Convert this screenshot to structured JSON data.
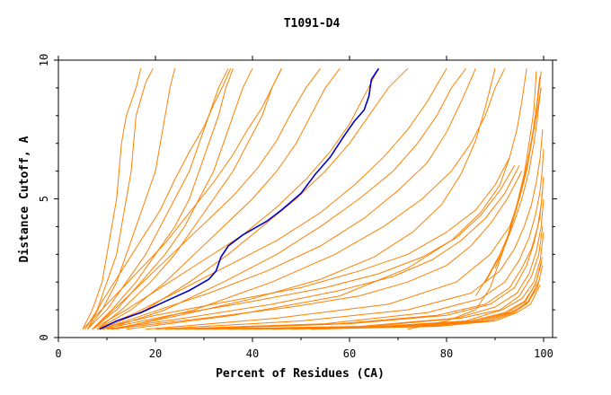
{
  "chart_data": {
    "type": "line",
    "title": "T1091-D4",
    "xlabel": "Percent of Residues (CA)",
    "ylabel": "Distance Cutoff, A",
    "xlim": [
      0,
      100
    ],
    "ylim": [
      0,
      10
    ],
    "xticks": [
      0,
      20,
      40,
      60,
      80,
      100
    ],
    "yticks": [
      0,
      5,
      10
    ],
    "grid": false,
    "legend": "none",
    "colors": {
      "highlight": "#0000cc",
      "background_models": "#ff8000",
      "axes": "#000000"
    },
    "highlight_series": {
      "x": [
        8.5,
        12,
        17,
        22,
        27,
        31,
        32.5,
        33.5,
        35,
        38,
        41,
        43,
        46,
        50,
        53,
        56,
        59,
        61,
        63,
        64,
        64.5,
        66
      ],
      "y": [
        0.3,
        0.6,
        0.9,
        1.3,
        1.7,
        2.1,
        2.4,
        2.9,
        3.3,
        3.7,
        4.0,
        4.2,
        4.6,
        5.2,
        5.9,
        6.5,
        7.3,
        7.8,
        8.2,
        8.7,
        9.3,
        9.7
      ]
    },
    "background_series": [
      {
        "x": [
          5,
          7,
          9,
          10,
          11,
          12,
          12.5,
          13,
          14,
          15,
          16,
          17
        ],
        "y": [
          0.3,
          1.0,
          2.0,
          3.0,
          4.0,
          5.0,
          6.0,
          7.0,
          8.0,
          8.5,
          9.0,
          9.7
        ]
      },
      {
        "x": [
          5.5,
          8,
          10,
          12,
          13,
          14,
          15,
          15.5,
          16,
          17,
          18,
          19.5
        ],
        "y": [
          0.3,
          1.0,
          2.0,
          3.0,
          4.0,
          5.0,
          6.0,
          7.0,
          8.0,
          8.6,
          9.2,
          9.7
        ]
      },
      {
        "x": [
          6,
          9,
          12,
          14,
          16,
          18,
          20,
          21,
          22,
          23,
          24
        ],
        "y": [
          0.3,
          1.0,
          2.0,
          3.0,
          4.0,
          5.0,
          6.0,
          7.0,
          8.0,
          9.0,
          9.7
        ]
      },
      {
        "x": [
          6,
          10,
          14,
          18,
          21,
          24,
          27,
          29,
          31,
          33,
          35
        ],
        "y": [
          0.3,
          1.0,
          2.0,
          3.0,
          4.0,
          5.0,
          6.0,
          7.0,
          8.0,
          9.0,
          9.7
        ]
      },
      {
        "x": [
          7,
          11,
          16,
          20,
          24,
          27,
          29,
          31,
          33,
          34.5,
          36
        ],
        "y": [
          0.3,
          1.0,
          2.0,
          3.0,
          4.0,
          5.0,
          6.0,
          7.0,
          8.0,
          9.0,
          9.7
        ]
      },
      {
        "x": [
          7,
          12,
          17,
          22,
          26,
          29,
          32,
          34,
          36,
          38,
          40
        ],
        "y": [
          0.3,
          1.0,
          2.0,
          3.0,
          4.0,
          5.0,
          6.0,
          7.0,
          8.0,
          9.0,
          9.7
        ]
      },
      {
        "x": [
          8,
          13,
          19,
          24,
          28,
          32,
          36,
          39,
          42,
          44,
          46
        ],
        "y": [
          0.3,
          1.0,
          2.0,
          3.0,
          4.0,
          5.0,
          6.0,
          7.0,
          8.0,
          9.0,
          9.7
        ]
      },
      {
        "x": [
          8,
          15,
          22,
          28,
          34,
          40,
          45,
          49,
          52,
          55,
          58
        ],
        "y": [
          0.3,
          1.0,
          2.0,
          3.0,
          4.0,
          5.0,
          6.0,
          7.0,
          8.0,
          9.0,
          9.7
        ]
      },
      {
        "x": [
          9,
          18,
          27,
          35,
          42,
          49,
          55,
          60,
          64,
          68,
          72
        ],
        "y": [
          0.3,
          1.0,
          2.0,
          3.0,
          4.0,
          5.0,
          6.0,
          7.0,
          8.0,
          9.0,
          9.7
        ]
      },
      {
        "x": [
          10,
          22,
          34,
          45,
          54,
          62,
          69,
          74,
          78,
          81,
          84
        ],
        "y": [
          0.3,
          1.0,
          2.0,
          3.0,
          4.0,
          5.0,
          6.0,
          7.0,
          8.0,
          9.0,
          9.7
        ]
      },
      {
        "x": [
          12,
          28,
          44,
          57,
          67,
          75,
          81,
          85,
          88,
          90,
          92
        ],
        "y": [
          0.3,
          1.0,
          2.0,
          3.0,
          4.0,
          5.0,
          6.0,
          7.0,
          8.0,
          9.0,
          9.7
        ]
      },
      {
        "x": [
          14,
          36,
          58,
          72,
          81,
          87,
          91,
          93,
          94.5,
          95.5,
          96.5
        ],
        "y": [
          0.3,
          0.8,
          1.5,
          2.5,
          3.5,
          4.5,
          5.5,
          6.5,
          7.5,
          8.5,
          9.7
        ]
      },
      {
        "x": [
          18,
          45,
          68,
          82,
          89,
          93,
          95,
          96.5,
          97.5,
          98.5,
          99.5
        ],
        "y": [
          0.3,
          0.7,
          1.2,
          2.0,
          3.0,
          4.0,
          5.0,
          6.0,
          7.0,
          8.0,
          9.0
        ]
      },
      {
        "x": [
          20,
          50,
          72,
          85,
          91,
          94,
          96,
          97.5,
          98.5,
          99.3,
          99.8
        ],
        "y": [
          0.3,
          0.6,
          1.0,
          1.6,
          2.4,
          3.2,
          4.0,
          4.8,
          5.6,
          6.5,
          7.5
        ]
      },
      {
        "x": [
          22,
          55,
          76,
          87,
          92,
          95,
          97,
          98.3,
          99.2,
          99.7,
          100
        ],
        "y": [
          0.3,
          0.5,
          0.9,
          1.4,
          2.0,
          2.8,
          3.6,
          4.4,
          5.2,
          6.0,
          6.8
        ]
      },
      {
        "x": [
          24,
          58,
          78,
          88,
          93,
          95.5,
          97.5,
          98.8,
          99.5,
          100
        ],
        "y": [
          0.3,
          0.5,
          0.8,
          1.2,
          1.8,
          2.5,
          3.2,
          4.0,
          4.8,
          5.8
        ]
      },
      {
        "x": [
          26,
          60,
          80,
          89,
          94,
          96.5,
          98,
          99.2,
          99.8
        ],
        "y": [
          0.3,
          0.5,
          0.8,
          1.2,
          1.8,
          2.6,
          3.4,
          4.3,
          5.3
        ]
      },
      {
        "x": [
          28,
          62,
          82,
          90,
          94.5,
          97,
          98.5,
          99.5,
          100
        ],
        "y": [
          0.3,
          0.4,
          0.7,
          1.1,
          1.6,
          2.3,
          3.1,
          4.0,
          5.0
        ]
      },
      {
        "x": [
          30,
          64,
          83,
          91,
          95,
          97.5,
          99,
          99.8
        ],
        "y": [
          0.3,
          0.4,
          0.7,
          1.0,
          1.5,
          2.2,
          3.0,
          4.0
        ]
      },
      {
        "x": [
          32,
          66,
          84,
          91.5,
          95.5,
          98,
          99.3,
          100
        ],
        "y": [
          0.3,
          0.4,
          0.6,
          1.0,
          1.4,
          2.0,
          2.8,
          3.8
        ]
      },
      {
        "x": [
          35,
          68,
          85,
          92,
          96,
          98.3,
          99.6
        ],
        "y": [
          0.3,
          0.4,
          0.6,
          0.9,
          1.3,
          1.9,
          2.7
        ]
      },
      {
        "x": [
          38,
          70,
          86,
          92.5,
          96.3,
          98.5,
          99.7
        ],
        "y": [
          0.3,
          0.4,
          0.6,
          0.9,
          1.3,
          2.0,
          2.9
        ]
      },
      {
        "x": [
          40,
          72,
          87,
          93,
          96.5,
          98.7,
          99.8
        ],
        "y": [
          0.3,
          0.4,
          0.6,
          0.9,
          1.2,
          1.8,
          2.6
        ]
      },
      {
        "x": [
          44,
          74,
          88,
          93.5,
          96.8,
          99
        ],
        "y": [
          0.3,
          0.4,
          0.6,
          0.9,
          1.3,
          2.0
        ]
      },
      {
        "x": [
          48,
          76,
          89,
          94,
          97,
          99.2
        ],
        "y": [
          0.3,
          0.4,
          0.6,
          0.9,
          1.3,
          2.1
        ]
      },
      {
        "x": [
          52,
          78,
          90,
          94.5,
          97.3,
          99.3
        ],
        "y": [
          0.3,
          0.4,
          0.6,
          0.9,
          1.2,
          1.9
        ]
      },
      {
        "x": [
          8,
          20,
          35,
          50,
          62,
          72,
          80,
          86,
          90,
          93
        ],
        "y": [
          0.3,
          0.8,
          1.3,
          1.8,
          2.4,
          3.0,
          3.8,
          4.6,
          5.5,
          6.5
        ]
      },
      {
        "x": [
          9,
          23,
          40,
          55,
          66,
          75,
          82,
          87,
          91,
          94
        ],
        "y": [
          0.3,
          0.8,
          1.3,
          1.8,
          2.3,
          2.9,
          3.6,
          4.4,
          5.3,
          6.2
        ]
      },
      {
        "x": [
          10,
          26,
          44,
          58,
          69,
          77,
          83,
          88,
          92,
          95
        ],
        "y": [
          0.3,
          0.7,
          1.2,
          1.7,
          2.2,
          2.8,
          3.5,
          4.3,
          5.2,
          6.2
        ]
      },
      {
        "x": [
          11,
          30,
          48,
          62,
          72,
          80,
          85,
          89,
          92.5,
          95.5
        ],
        "y": [
          0.3,
          0.7,
          1.1,
          1.5,
          2.0,
          2.6,
          3.3,
          4.1,
          5.0,
          6.0
        ]
      },
      {
        "x": [
          90,
          92,
          94,
          95.5,
          97,
          98,
          98.8,
          99.4
        ],
        "y": [
          2.5,
          3.3,
          4.2,
          5.0,
          6.0,
          7.0,
          8.0,
          9.0
        ]
      },
      {
        "x": [
          88,
          90.5,
          92.5,
          94,
          95.5,
          96.8,
          97.8,
          98.6,
          99.2
        ],
        "y": [
          2.0,
          2.8,
          3.6,
          4.5,
          5.4,
          6.4,
          7.4,
          8.4,
          9.4
        ]
      },
      {
        "x": [
          86,
          88.5,
          91,
          93,
          94.5,
          95.8,
          97,
          98,
          98.8,
          99.5
        ],
        "y": [
          1.5,
          2.2,
          3.0,
          3.8,
          4.7,
          5.6,
          6.6,
          7.6,
          8.6,
          9.6
        ]
      },
      {
        "x": [
          72,
          80,
          86,
          89,
          91,
          93,
          94.5,
          96,
          97,
          98,
          98.5
        ],
        "y": [
          0.3,
          0.6,
          1.0,
          1.8,
          2.8,
          3.8,
          4.8,
          5.9,
          7.0,
          8.2,
          9.6
        ]
      },
      {
        "x": [
          5,
          10,
          16,
          22,
          27,
          32,
          36,
          39,
          42,
          44,
          46
        ],
        "y": [
          0.3,
          1.2,
          2.3,
          3.4,
          4.5,
          5.6,
          6.6,
          7.5,
          8.3,
          9.0,
          9.7
        ]
      },
      {
        "x": [
          6,
          9,
          13,
          17,
          21,
          24,
          27,
          30,
          32,
          34,
          35.5
        ],
        "y": [
          0.3,
          1.3,
          2.4,
          3.5,
          4.6,
          5.7,
          6.7,
          7.6,
          8.4,
          9.1,
          9.7
        ]
      },
      {
        "x": [
          7,
          12,
          18,
          24,
          30,
          36,
          41,
          45,
          48,
          51,
          54
        ],
        "y": [
          0.3,
          1.1,
          2.1,
          3.1,
          4.1,
          5.1,
          6.1,
          7.1,
          8.1,
          9.0,
          9.7
        ]
      },
      {
        "x": [
          7,
          14,
          22,
          30,
          38,
          45,
          51,
          56,
          60,
          63,
          66
        ],
        "y": [
          0.3,
          1.0,
          1.9,
          2.8,
          3.7,
          4.7,
          5.7,
          6.7,
          7.7,
          8.7,
          9.7
        ]
      },
      {
        "x": [
          8,
          16,
          25,
          35,
          45,
          54,
          61,
          67,
          72,
          76,
          80
        ],
        "y": [
          0.3,
          0.9,
          1.7,
          2.6,
          3.5,
          4.5,
          5.5,
          6.5,
          7.5,
          8.5,
          9.7
        ]
      },
      {
        "x": [
          9,
          19,
          31,
          43,
          54,
          63,
          70,
          76,
          80,
          83,
          86
        ],
        "y": [
          0.3,
          0.9,
          1.6,
          2.4,
          3.3,
          4.3,
          5.3,
          6.3,
          7.4,
          8.5,
          9.7
        ]
      },
      {
        "x": [
          11,
          25,
          40,
          54,
          65,
          73,
          79,
          83,
          86,
          88,
          90
        ],
        "y": [
          0.3,
          0.8,
          1.4,
          2.1,
          2.9,
          3.8,
          4.8,
          5.9,
          7.1,
          8.3,
          9.7
        ]
      }
    ]
  }
}
